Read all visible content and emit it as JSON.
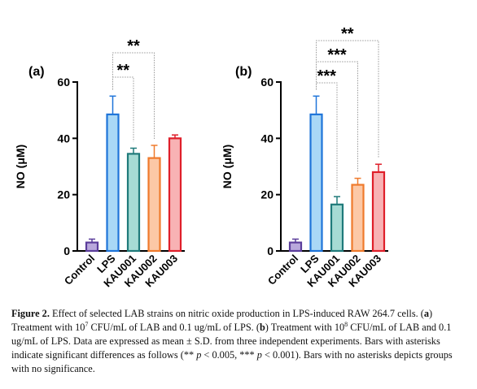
{
  "chart_data": [
    {
      "type": "bar",
      "panel": "(a)",
      "ylabel": "NO (μM)",
      "categories": [
        "Control",
        "LPS",
        "KAU001",
        "KAU002",
        "KAU003"
      ],
      "values": [
        3,
        48.5,
        34.5,
        33,
        40
      ],
      "errors": [
        1.2,
        6.5,
        2,
        4.5,
        1.2
      ],
      "colors": [
        "#b9a8dc",
        "#a9d8f6",
        "#a6dbd4",
        "#fcc8a6",
        "#f8b2b4"
      ],
      "edge_colors": [
        "#5b3d9b",
        "#1e74d9",
        "#1f7a7a",
        "#ef7a2c",
        "#df1f2a"
      ],
      "ylim": [
        0,
        60
      ],
      "yticks": [
        0,
        20,
        40,
        60
      ],
      "annotations": [
        {
          "label": "**",
          "between": [
            "LPS",
            "KAU002"
          ]
        },
        {
          "label": "**",
          "between": [
            "LPS",
            "KAU001"
          ]
        }
      ]
    },
    {
      "type": "bar",
      "panel": "(b)",
      "ylabel": "NO (μM)",
      "categories": [
        "Control",
        "LPS",
        "KAU001",
        "KAU002",
        "KAU003"
      ],
      "values": [
        3,
        48.5,
        16.5,
        23.5,
        28
      ],
      "errors": [
        1.2,
        6.5,
        2.8,
        2.3,
        2.8
      ],
      "colors": [
        "#b9a8dc",
        "#a9d8f6",
        "#a6dbd4",
        "#fcc8a6",
        "#f8b2b4"
      ],
      "edge_colors": [
        "#5b3d9b",
        "#1e74d9",
        "#1f7a7a",
        "#ef7a2c",
        "#df1f2a"
      ],
      "ylim": [
        0,
        60
      ],
      "yticks": [
        0,
        20,
        40,
        60
      ],
      "annotations": [
        {
          "label": "**",
          "between": [
            "LPS",
            "KAU003"
          ]
        },
        {
          "label": "***",
          "between": [
            "LPS",
            "KAU002"
          ]
        },
        {
          "label": "***",
          "between": [
            "LPS",
            "KAU001"
          ]
        }
      ]
    }
  ],
  "caption": [
    "Figure 2.",
    " Effect of selected LAB strains on nitric oxide production in LPS-induced RAW 264.7 cells. (",
    "a",
    ") Treatment with 10",
    "7",
    " CFU/mL of LAB and 0.1 ug/mL of LPS. (",
    "b",
    ") Treatment with 10",
    "8",
    " CFU/mL of LAB and 0.1 ug/mL of LPS. Data are expressed as mean ± S.D. from three independent experiments. Bars with asterisks indicate significant differences as follows (** ",
    "p",
    " < 0.005, *** ",
    "p",
    " < 0.001). Bars with no asterisks depicts groups with no significance."
  ]
}
